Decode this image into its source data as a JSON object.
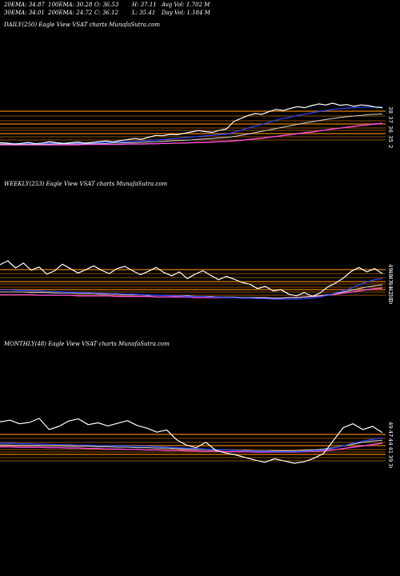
{
  "stats": {
    "ema20": "20EMA: 34.87",
    "ema30": "30EMA: 34.01",
    "ema100": "100EMA: 30.28",
    "ema200": "200EMA: 24.72",
    "open": "O: 36.53",
    "close": "C: 36.12",
    "high": "H: 37.11",
    "low": "L: 35.41",
    "avg_vol": "Avg Vol: 1.702  M",
    "day_vol": "Day Vol: 1.184  M"
  },
  "colors": {
    "background": "#000000",
    "price": "#ffffff",
    "ema_short": "#2a47ff",
    "ema_mid": "#d7d7d7",
    "ema_long": "#ff4fd8",
    "bands": "#c06a00"
  },
  "chart_data": [
    {
      "type": "line",
      "title": "DAILY(250) Eagle   View  VSAT charts MunafaSutra.com",
      "y_ticks": [
        "38",
        "37",
        "36",
        "35",
        "26"
      ],
      "series": [
        {
          "role": "price",
          "values": [
            26.0,
            25.9,
            25.6,
            25.8,
            26.1,
            25.7,
            25.9,
            26.3,
            26.0,
            25.8,
            26.0,
            26.2,
            25.9,
            26.1,
            26.3,
            26.5,
            26.2,
            26.6,
            26.9,
            27.2,
            27.0,
            27.6,
            28.1,
            28.0,
            28.4,
            28.3,
            28.7,
            29.1,
            29.5,
            29.2,
            29.0,
            29.6,
            30.0,
            32.1,
            33.0,
            33.8,
            34.4,
            34.2,
            35.0,
            35.6,
            35.3,
            35.9,
            36.4,
            36.1,
            36.7,
            37.2,
            36.9,
            37.4,
            36.8,
            37.0,
            36.5,
            36.9,
            36.7,
            36.3,
            36.1
          ]
        },
        {
          "role": "ema_short",
          "values": [
            25.9,
            25.9,
            25.8,
            25.8,
            25.8,
            25.8,
            25.8,
            25.9,
            25.9,
            25.9,
            25.9,
            25.9,
            25.9,
            26.0,
            26.0,
            26.1,
            26.1,
            26.2,
            26.3,
            26.4,
            26.5,
            26.6,
            26.8,
            26.9,
            27.1,
            27.2,
            27.4,
            27.6,
            27.8,
            28.0,
            28.1,
            28.3,
            28.5,
            29.0,
            29.6,
            30.2,
            30.8,
            31.3,
            31.9,
            32.5,
            33.0,
            33.4,
            33.9,
            34.2,
            34.6,
            35.0,
            35.3,
            35.6,
            35.8,
            36.0,
            36.1,
            36.2,
            36.3,
            36.3,
            36.3
          ]
        },
        {
          "role": "ema_mid",
          "values": [
            25.6,
            25.6,
            25.6,
            25.6,
            25.6,
            25.6,
            25.6,
            25.6,
            25.7,
            25.7,
            25.7,
            25.7,
            25.7,
            25.8,
            25.8,
            25.8,
            25.9,
            25.9,
            26.0,
            26.0,
            26.1,
            26.2,
            26.3,
            26.4,
            26.5,
            26.6,
            26.7,
            26.8,
            27.0,
            27.1,
            27.2,
            27.4,
            27.5,
            27.8,
            28.1,
            28.5,
            28.9,
            29.3,
            29.7,
            30.1,
            30.5,
            30.9,
            31.3,
            31.7,
            32.0,
            32.4,
            32.7,
            33.0,
            33.3,
            33.5,
            33.7,
            33.9,
            34.1,
            34.2,
            34.3
          ]
        },
        {
          "role": "ema_long",
          "values": [
            25.4,
            25.4,
            25.4,
            25.4,
            25.4,
            25.4,
            25.4,
            25.4,
            25.4,
            25.4,
            25.4,
            25.4,
            25.5,
            25.5,
            25.5,
            25.5,
            25.5,
            25.5,
            25.6,
            25.6,
            25.6,
            25.7,
            25.7,
            25.8,
            25.8,
            25.9,
            25.9,
            26.0,
            26.1,
            26.1,
            26.2,
            26.3,
            26.4,
            26.5,
            26.7,
            26.9,
            27.1,
            27.3,
            27.6,
            27.8,
            28.1,
            28.3,
            28.6,
            28.9,
            29.1,
            29.4,
            29.7,
            30.0,
            30.2,
            30.5,
            30.7,
            31.0,
            31.2,
            31.4,
            31.6
          ]
        }
      ]
    },
    {
      "type": "line",
      "title": "WEEKLY(253) Eagle   View  VSAT charts MunafaSutra.com",
      "y_ticks": [
        "49",
        "48",
        "47",
        "44",
        "42",
        "38",
        "36"
      ],
      "series": [
        {
          "role": "price",
          "values": [
            47.5,
            48.2,
            46.9,
            47.8,
            46.5,
            47.1,
            45.8,
            46.4,
            47.6,
            46.8,
            46.0,
            46.6,
            47.3,
            46.5,
            45.9,
            46.8,
            47.2,
            46.4,
            45.7,
            46.3,
            47.0,
            46.1,
            45.5,
            46.2,
            45.0,
            45.8,
            46.4,
            45.6,
            44.8,
            45.4,
            44.9,
            44.3,
            44.0,
            43.2,
            43.6,
            42.8,
            43.0,
            42.2,
            41.9,
            42.5,
            41.8,
            42.4,
            43.5,
            44.2,
            45.1,
            46.3,
            47.0,
            46.2,
            46.8,
            45.9
          ]
        },
        {
          "role": "ema_short",
          "values": [
            43.0,
            43.0,
            42.9,
            42.9,
            42.8,
            42.8,
            42.7,
            42.7,
            42.6,
            42.6,
            42.5,
            42.5,
            42.4,
            42.4,
            42.3,
            42.3,
            42.2,
            42.2,
            42.1,
            42.1,
            42.0,
            42.0,
            41.9,
            41.9,
            41.8,
            41.8,
            41.8,
            41.7,
            41.7,
            41.6,
            41.6,
            41.5,
            41.5,
            41.4,
            41.4,
            41.3,
            41.3,
            41.3,
            41.3,
            41.4,
            41.5,
            41.7,
            42.0,
            42.4,
            42.8,
            43.3,
            43.9,
            44.4,
            44.8,
            45.0
          ]
        },
        {
          "role": "ema_mid",
          "values": [
            42.6,
            42.6,
            42.6,
            42.6,
            42.5,
            42.5,
            42.5,
            42.4,
            42.4,
            42.4,
            42.3,
            42.3,
            42.3,
            42.2,
            42.2,
            42.2,
            42.1,
            42.1,
            42.1,
            42.0,
            42.0,
            42.0,
            41.9,
            41.9,
            41.9,
            41.8,
            41.8,
            41.8,
            41.7,
            41.7,
            41.7,
            41.6,
            41.6,
            41.6,
            41.6,
            41.5,
            41.5,
            41.6,
            41.6,
            41.7,
            41.8,
            41.9,
            42.1,
            42.3,
            42.6,
            42.9,
            43.2,
            43.5,
            43.7,
            43.9
          ]
        },
        {
          "role": "ema_long",
          "values": [
            42.1,
            42.1,
            42.1,
            42.1,
            42.1,
            42.0,
            42.0,
            42.0,
            42.0,
            42.0,
            41.9,
            41.9,
            41.9,
            41.9,
            41.9,
            41.8,
            41.8,
            41.8,
            41.8,
            41.8,
            41.7,
            41.7,
            41.7,
            41.7,
            41.7,
            41.6,
            41.6,
            41.6,
            41.6,
            41.6,
            41.6,
            41.5,
            41.5,
            41.5,
            41.5,
            41.5,
            41.5,
            41.6,
            41.6,
            41.7,
            41.8,
            41.9,
            42.0,
            42.2,
            42.4,
            42.6,
            42.8,
            43.0,
            43.2,
            43.3
          ]
        }
      ]
    },
    {
      "type": "line",
      "title": "MONTHLY(48) Eagle   View  VSAT charts MunafaSutra.com",
      "y_ticks": [
        "49",
        "47",
        "44",
        "41",
        "39",
        "36"
      ],
      "series": [
        {
          "role": "price",
          "values": [
            47.2,
            47.6,
            46.8,
            47.1,
            48.0,
            45.5,
            46.2,
            47.4,
            47.9,
            46.6,
            47.0,
            46.3,
            46.9,
            47.5,
            46.4,
            45.8,
            44.9,
            45.4,
            43.2,
            42.0,
            41.4,
            42.6,
            40.8,
            40.2,
            39.8,
            39.2,
            38.6,
            38.1,
            38.9,
            38.4,
            37.9,
            38.2,
            39.0,
            40.1,
            43.0,
            45.9,
            46.8,
            45.5,
            46.2,
            44.8
          ]
        },
        {
          "role": "ema_short",
          "values": [
            42.4,
            42.4,
            42.3,
            42.3,
            42.2,
            42.2,
            42.1,
            42.1,
            42.0,
            42.0,
            41.9,
            41.9,
            41.8,
            41.8,
            41.7,
            41.7,
            41.6,
            41.5,
            41.4,
            41.3,
            41.2,
            41.1,
            41.0,
            40.9,
            40.8,
            40.7,
            40.6,
            40.6,
            40.5,
            40.5,
            40.5,
            40.6,
            40.7,
            40.9,
            41.3,
            41.8,
            42.4,
            42.9,
            43.3,
            43.6
          ]
        },
        {
          "role": "ema_mid",
          "values": [
            42.0,
            42.0,
            41.9,
            41.9,
            41.9,
            41.8,
            41.8,
            41.7,
            41.7,
            41.7,
            41.6,
            41.6,
            41.5,
            41.5,
            41.4,
            41.4,
            41.3,
            41.3,
            41.2,
            41.1,
            41.1,
            41.0,
            40.9,
            40.9,
            40.8,
            40.8,
            40.7,
            40.7,
            40.7,
            40.7,
            40.7,
            40.8,
            40.9,
            41.1,
            41.4,
            41.8,
            42.2,
            42.6,
            42.9,
            43.1
          ]
        },
        {
          "role": "ema_long",
          "values": [
            41.6,
            41.6,
            41.5,
            41.5,
            41.5,
            41.4,
            41.4,
            41.3,
            41.3,
            41.2,
            41.2,
            41.1,
            41.1,
            41.0,
            41.0,
            40.9,
            40.9,
            40.8,
            40.8,
            40.7,
            40.7,
            40.6,
            40.6,
            40.5,
            40.5,
            40.5,
            40.4,
            40.4,
            40.4,
            40.4,
            40.4,
            40.5,
            40.6,
            40.7,
            40.9,
            41.2,
            41.5,
            41.8,
            42.1,
            42.4
          ]
        }
      ]
    }
  ]
}
